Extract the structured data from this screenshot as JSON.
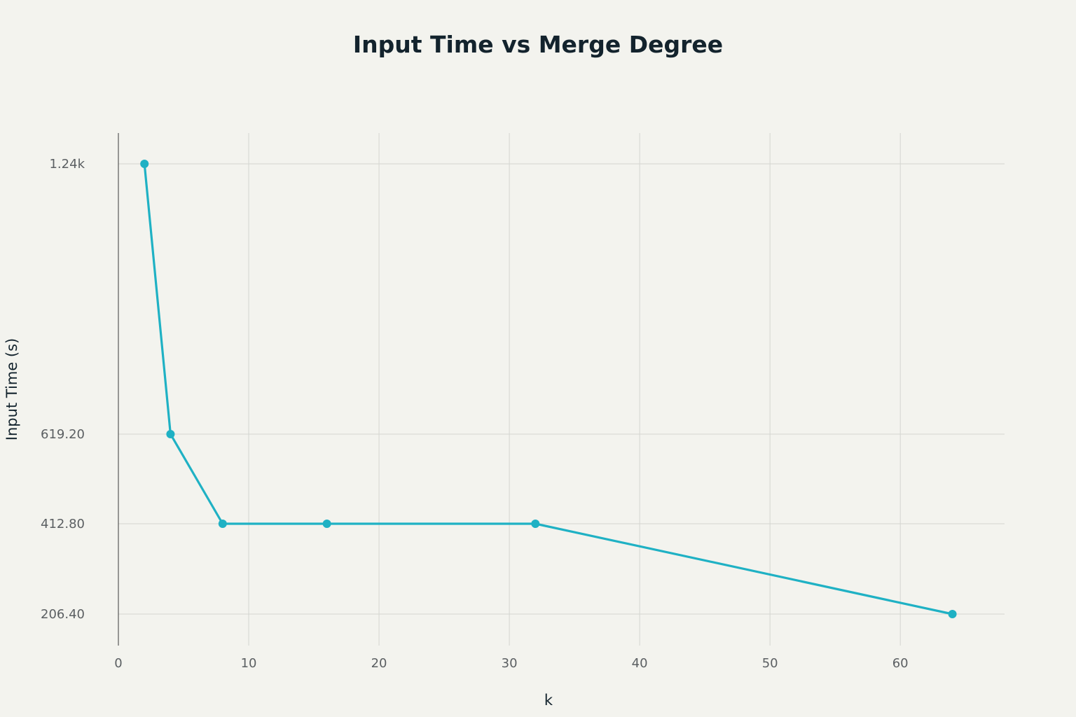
{
  "chart_data": {
    "type": "line",
    "title": "Input Time vs Merge Degree",
    "xlabel": "k",
    "ylabel": "Input Time (s)",
    "xlim": [
      0,
      68
    ],
    "xticks": [
      0,
      10,
      20,
      30,
      40,
      50,
      60
    ],
    "xtick_labels": [
      "0",
      "10",
      "20",
      "30",
      "40",
      "50",
      "60"
    ],
    "yticks": [
      206.4,
      412.8,
      619.2,
      1238.4
    ],
    "ytick_labels": [
      "206.40",
      "412.80",
      "619.20",
      "1.24k"
    ],
    "grid": true,
    "color": "#1fb1c4",
    "series": [
      {
        "x": [
          2,
          4,
          8,
          16,
          32,
          64
        ],
        "y": [
          1238.4,
          619.2,
          412.8,
          412.8,
          412.8,
          206.4
        ]
      }
    ]
  }
}
